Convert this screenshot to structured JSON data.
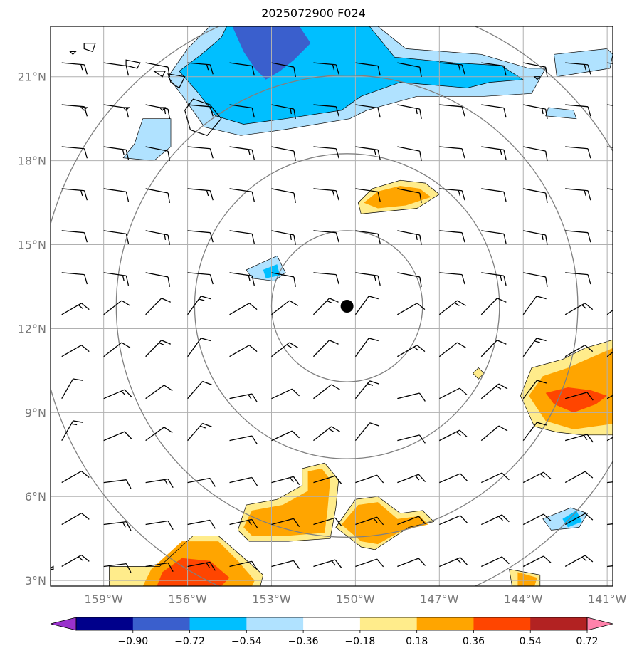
{
  "title": "2025072900 F024",
  "map": {
    "lon_range": [
      -160.9,
      -140.8
    ],
    "lat_range": [
      2.8,
      22.8
    ],
    "lat_ticks": [
      {
        "value": 21,
        "label": "21°N"
      },
      {
        "value": 18,
        "label": "18°N"
      },
      {
        "value": 15,
        "label": "15°N"
      },
      {
        "value": 12,
        "label": "12°N"
      },
      {
        "value": 9,
        "label": "9°N"
      },
      {
        "value": 6,
        "label": "6°N"
      },
      {
        "value": 3,
        "label": "3°N"
      }
    ],
    "lon_ticks": [
      {
        "value": -159,
        "label": "159°W"
      },
      {
        "value": -156,
        "label": "156°W"
      },
      {
        "value": -153,
        "label": "153°W"
      },
      {
        "value": -150,
        "label": "150°W"
      },
      {
        "value": -147,
        "label": "147°W"
      },
      {
        "value": -144,
        "label": "144°W"
      },
      {
        "value": -141,
        "label": "141°W"
      }
    ],
    "center": {
      "lon": -150.3,
      "lat": 12.8
    },
    "range_rings_deg": [
      2.7,
      5.45,
      8.25,
      11.0
    ],
    "colors": {
      "grid": "#b0b0b0",
      "ring": "#808080",
      "frame": "#000000",
      "center_marker": "#000000"
    }
  },
  "colorbar": {
    "colors": [
      "#9932cc",
      "#00008b",
      "#3a5fcd",
      "#00bfff",
      "#b0e2ff",
      "#ffffff",
      "#ffec8b",
      "#ffa500",
      "#ff4500",
      "#b22222",
      "#ff82ab"
    ],
    "ticks": [
      "−0.90",
      "−0.72",
      "−0.54",
      "−0.36",
      "−0.18",
      "0.18",
      "0.36",
      "0.54",
      "0.72",
      "0.90"
    ]
  },
  "shaded_regions": [
    {
      "level": -0.36,
      "color": "#00bfff",
      "poly": [
        [
          -154.6,
          22.8
        ],
        [
          -149.5,
          22.8
        ],
        [
          -148.6,
          21.7
        ],
        [
          -146.5,
          21.5
        ],
        [
          -144.8,
          21.4
        ],
        [
          -144.0,
          20.9
        ],
        [
          -145.2,
          20.8
        ],
        [
          -146.0,
          20.6
        ],
        [
          -148.4,
          20.8
        ],
        [
          -149.8,
          20.3
        ],
        [
          -150.5,
          19.8
        ],
        [
          -152.5,
          19.5
        ],
        [
          -154.0,
          19.3
        ],
        [
          -155.0,
          19.6
        ],
        [
          -155.6,
          20.4
        ],
        [
          -156.3,
          21.2
        ],
        [
          -155.5,
          21.8
        ],
        [
          -154.8,
          22.4
        ]
      ]
    },
    {
      "level": -0.18,
      "color": "#b0e2ff",
      "poly": [
        [
          -155.2,
          22.8
        ],
        [
          -154.6,
          22.8
        ],
        [
          -154.8,
          22.4
        ],
        [
          -155.5,
          21.8
        ],
        [
          -156.3,
          21.2
        ],
        [
          -155.6,
          20.4
        ],
        [
          -155.0,
          19.6
        ],
        [
          -154.0,
          19.3
        ],
        [
          -152.5,
          19.5
        ],
        [
          -150.5,
          19.8
        ],
        [
          -149.8,
          20.3
        ],
        [
          -148.4,
          20.8
        ],
        [
          -146.0,
          20.6
        ],
        [
          -145.2,
          20.8
        ],
        [
          -144.0,
          20.9
        ],
        [
          -144.8,
          21.4
        ],
        [
          -146.5,
          21.5
        ],
        [
          -148.6,
          21.7
        ],
        [
          -149.5,
          22.8
        ],
        [
          -149.2,
          22.8
        ],
        [
          -148.2,
          22.0
        ],
        [
          -145.5,
          21.8
        ],
        [
          -143.8,
          21.3
        ],
        [
          -143.2,
          21.3
        ],
        [
          -143.7,
          20.4
        ],
        [
          -145.4,
          20.3
        ],
        [
          -147.8,
          20.3
        ],
        [
          -149.6,
          19.8
        ],
        [
          -150.2,
          19.5
        ],
        [
          -152.6,
          19.1
        ],
        [
          -154.1,
          18.9
        ],
        [
          -155.4,
          19.2
        ],
        [
          -156.1,
          20.2
        ],
        [
          -156.7,
          21.0
        ],
        [
          -156.0,
          22.0
        ]
      ]
    },
    {
      "level": -0.54,
      "color": "#3a5fcd",
      "poly": [
        [
          -154.4,
          22.8
        ],
        [
          -152.0,
          22.8
        ],
        [
          -151.6,
          22.2
        ],
        [
          -152.2,
          21.6
        ],
        [
          -152.7,
          21.2
        ],
        [
          -153.2,
          20.9
        ],
        [
          -153.6,
          21.3
        ],
        [
          -154.0,
          21.9
        ]
      ]
    },
    {
      "level": -0.36,
      "color": "#00bfff",
      "poly": [
        [
          -157.5,
          19.2
        ],
        [
          -157.1,
          19.3
        ],
        [
          -156.8,
          18.6
        ],
        [
          -157.3,
          18.2
        ],
        [
          -157.8,
          18.4
        ]
      ]
    },
    {
      "level": -0.18,
      "color": "#b0e2ff",
      "poly": [
        [
          -157.6,
          19.5
        ],
        [
          -156.6,
          19.5
        ],
        [
          -156.6,
          18.5
        ],
        [
          -157.2,
          18.0
        ],
        [
          -158.3,
          18.1
        ],
        [
          -157.9,
          18.6
        ]
      ]
    },
    {
      "level": -0.36,
      "color": "#00bfff",
      "poly": [
        [
          -142.5,
          21.6
        ],
        [
          -141.2,
          21.7
        ],
        [
          -141.0,
          21.4
        ],
        [
          -142.4,
          21.3
        ]
      ]
    },
    {
      "level": -0.18,
      "color": "#b0e2ff",
      "poly": [
        [
          -142.9,
          21.8
        ],
        [
          -141.0,
          22.0
        ],
        [
          -140.8,
          21.8
        ],
        [
          -140.9,
          21.3
        ],
        [
          -142.8,
          21.0
        ]
      ]
    },
    {
      "level": -0.18,
      "color": "#b0e2ff",
      "poly": [
        [
          -143.1,
          19.9
        ],
        [
          -142.2,
          19.8
        ],
        [
          -142.1,
          19.5
        ],
        [
          -143.2,
          19.6
        ]
      ]
    },
    {
      "level": -0.18,
      "color": "#b0e2ff",
      "poly": [
        [
          -153.9,
          14.1
        ],
        [
          -152.8,
          14.6
        ],
        [
          -152.5,
          14.0
        ],
        [
          -152.9,
          13.7
        ],
        [
          -153.7,
          13.8
        ]
      ]
    },
    {
      "level": -0.36,
      "color": "#00bfff",
      "poly": [
        [
          -153.3,
          14.1
        ],
        [
          -152.8,
          14.3
        ],
        [
          -152.7,
          13.9
        ],
        [
          -153.2,
          13.8
        ]
      ]
    },
    {
      "level": -0.18,
      "color": "#b0e2ff",
      "poly": [
        [
          -143.3,
          5.2
        ],
        [
          -142.3,
          5.6
        ],
        [
          -141.7,
          5.4
        ],
        [
          -142.0,
          4.9
        ],
        [
          -143.0,
          4.8
        ]
      ]
    },
    {
      "level": -0.36,
      "color": "#00bfff",
      "poly": [
        [
          -142.6,
          5.2
        ],
        [
          -142.1,
          5.5
        ],
        [
          -141.9,
          5.1
        ],
        [
          -142.4,
          4.9
        ]
      ]
    },
    {
      "level": 0.18,
      "color": "#ffec8b",
      "poly": [
        [
          -149.9,
          16.5
        ],
        [
          -149.4,
          17.0
        ],
        [
          -148.4,
          17.3
        ],
        [
          -147.5,
          17.2
        ],
        [
          -147.0,
          16.8
        ],
        [
          -147.8,
          16.3
        ],
        [
          -148.8,
          16.2
        ],
        [
          -149.8,
          16.1
        ]
      ]
    },
    {
      "level": 0.36,
      "color": "#ffa500",
      "poly": [
        [
          -149.7,
          16.5
        ],
        [
          -149.2,
          16.9
        ],
        [
          -148.4,
          17.1
        ],
        [
          -147.7,
          17.0
        ],
        [
          -147.3,
          16.7
        ],
        [
          -148.2,
          16.4
        ],
        [
          -149.2,
          16.3
        ]
      ]
    },
    {
      "level": 0.18,
      "color": "#ffec8b",
      "poly": [
        [
          -144.1,
          9.6
        ],
        [
          -143.7,
          10.6
        ],
        [
          -142.6,
          10.9
        ],
        [
          -141.8,
          11.3
        ],
        [
          -140.8,
          11.6
        ],
        [
          -140.8,
          8.2
        ],
        [
          -141.9,
          8.2
        ],
        [
          -142.8,
          8.3
        ],
        [
          -143.6,
          8.5
        ]
      ]
    },
    {
      "level": 0.36,
      "color": "#ffa500",
      "poly": [
        [
          -143.8,
          9.6
        ],
        [
          -143.3,
          10.3
        ],
        [
          -142.4,
          10.6
        ],
        [
          -141.5,
          11.0
        ],
        [
          -140.8,
          11.3
        ],
        [
          -140.8,
          8.6
        ],
        [
          -142.2,
          8.4
        ],
        [
          -143.2,
          8.7
        ]
      ]
    },
    {
      "level": 0.54,
      "color": "#ff4500",
      "poly": [
        [
          -143.2,
          9.7
        ],
        [
          -142.4,
          9.9
        ],
        [
          -141.6,
          9.8
        ],
        [
          -141.0,
          9.6
        ],
        [
          -141.4,
          9.3
        ],
        [
          -142.2,
          9.0
        ],
        [
          -142.9,
          9.3
        ]
      ]
    },
    {
      "level": 0.18,
      "color": "#ffec8b",
      "poly": [
        [
          -145.8,
          10.4
        ],
        [
          -145.6,
          10.6
        ],
        [
          -145.4,
          10.4
        ],
        [
          -145.6,
          10.2
        ]
      ]
    },
    {
      "level": 0.18,
      "color": "#ffec8b",
      "poly": [
        [
          -154.2,
          4.8
        ],
        [
          -153.9,
          5.7
        ],
        [
          -152.8,
          5.9
        ],
        [
          -151.9,
          6.4
        ],
        [
          -151.9,
          7.0
        ],
        [
          -151.1,
          7.2
        ],
        [
          -150.6,
          6.6
        ],
        [
          -150.7,
          5.6
        ],
        [
          -150.9,
          4.5
        ],
        [
          -152.4,
          4.4
        ],
        [
          -153.8,
          4.4
        ]
      ]
    },
    {
      "level": 0.36,
      "color": "#ffa500",
      "poly": [
        [
          -154.0,
          4.9
        ],
        [
          -153.7,
          5.5
        ],
        [
          -152.6,
          5.7
        ],
        [
          -151.7,
          6.2
        ],
        [
          -151.7,
          6.9
        ],
        [
          -151.2,
          7.0
        ],
        [
          -150.9,
          6.6
        ],
        [
          -151.0,
          5.5
        ],
        [
          -151.1,
          4.7
        ],
        [
          -152.4,
          4.6
        ],
        [
          -153.7,
          4.6
        ]
      ]
    },
    {
      "level": 0.18,
      "color": "#ffec8b",
      "poly": [
        [
          -150.7,
          4.9
        ],
        [
          -150.0,
          5.9
        ],
        [
          -149.2,
          6.0
        ],
        [
          -148.4,
          5.4
        ],
        [
          -147.6,
          5.5
        ],
        [
          -147.2,
          5.1
        ],
        [
          -148.1,
          4.9
        ],
        [
          -149.3,
          4.1
        ],
        [
          -149.8,
          4.2
        ]
      ]
    },
    {
      "level": 0.36,
      "color": "#ffa500",
      "poly": [
        [
          -150.5,
          5.0
        ],
        [
          -149.9,
          5.7
        ],
        [
          -149.2,
          5.8
        ],
        [
          -148.5,
          5.2
        ],
        [
          -147.7,
          5.3
        ],
        [
          -147.4,
          5.0
        ],
        [
          -148.3,
          4.8
        ],
        [
          -149.2,
          4.3
        ],
        [
          -149.8,
          4.4
        ]
      ]
    },
    {
      "level": 0.18,
      "color": "#ffec8b",
      "poly": [
        [
          -158.8,
          3.5
        ],
        [
          -157.0,
          3.5
        ],
        [
          -155.8,
          4.6
        ],
        [
          -154.9,
          4.6
        ],
        [
          -154.1,
          3.9
        ],
        [
          -153.3,
          3.2
        ],
        [
          -153.4,
          2.8
        ],
        [
          -158.8,
          2.8
        ]
      ]
    },
    {
      "level": 0.36,
      "color": "#ffa500",
      "poly": [
        [
          -157.3,
          3.4
        ],
        [
          -156.2,
          4.4
        ],
        [
          -154.9,
          4.4
        ],
        [
          -154.2,
          3.7
        ],
        [
          -153.6,
          3.0
        ],
        [
          -153.7,
          2.8
        ],
        [
          -157.6,
          2.8
        ]
      ]
    },
    {
      "level": 0.54,
      "color": "#ff4500",
      "poly": [
        [
          -156.9,
          3.3
        ],
        [
          -156.2,
          3.8
        ],
        [
          -155.2,
          3.7
        ],
        [
          -154.5,
          3.1
        ],
        [
          -154.8,
          2.8
        ],
        [
          -157.1,
          2.8
        ]
      ]
    },
    {
      "level": 0.18,
      "color": "#ffec8b",
      "poly": [
        [
          -144.5,
          3.4
        ],
        [
          -143.4,
          3.2
        ],
        [
          -143.4,
          2.8
        ],
        [
          -144.4,
          2.8
        ]
      ]
    },
    {
      "level": 0.36,
      "color": "#ffa500",
      "poly": [
        [
          -144.2,
          3.3
        ],
        [
          -143.5,
          3.1
        ],
        [
          -143.6,
          2.8
        ],
        [
          -144.2,
          2.8
        ]
      ]
    }
  ],
  "coastlines": [
    {
      "poly": [
        [
          -155.8,
          20.2
        ],
        [
          -155.2,
          20.0
        ],
        [
          -154.8,
          19.5
        ],
        [
          -155.3,
          18.9
        ],
        [
          -155.9,
          19.1
        ],
        [
          -156.1,
          19.8
        ]
      ]
    },
    {
      "poly": [
        [
          -156.7,
          21.1
        ],
        [
          -156.1,
          21.0
        ],
        [
          -156.3,
          20.6
        ],
        [
          -156.6,
          20.8
        ]
      ]
    },
    {
      "poly": [
        [
          -157.2,
          21.2
        ],
        [
          -156.8,
          21.2
        ],
        [
          -156.9,
          21.0
        ]
      ]
    },
    {
      "poly": [
        [
          -158.2,
          21.6
        ],
        [
          -157.7,
          21.5
        ],
        [
          -157.8,
          21.3
        ],
        [
          -158.2,
          21.4
        ]
      ]
    },
    {
      "poly": [
        [
          -159.7,
          22.2
        ],
        [
          -159.3,
          22.2
        ],
        [
          -159.4,
          21.9
        ],
        [
          -159.7,
          22.0
        ]
      ]
    },
    {
      "poly": [
        [
          -160.2,
          21.9
        ],
        [
          -160.0,
          21.9
        ],
        [
          -160.1,
          21.8
        ]
      ]
    },
    {
      "poly": [
        [
          -159.8,
          19.9
        ],
        [
          -159.6,
          19.9
        ],
        [
          -159.7,
          19.8
        ]
      ]
    },
    {
      "poly": [
        [
          -158.3,
          19.9
        ],
        [
          -158.1,
          19.9
        ],
        [
          -158.2,
          19.8
        ]
      ]
    },
    {
      "poly": [
        [
          -157.0,
          19.9
        ],
        [
          -156.8,
          19.9
        ],
        [
          -156.9,
          19.8
        ]
      ]
    },
    {
      "poly": [
        [
          -143.6,
          21.0
        ],
        [
          -143.4,
          21.0
        ],
        [
          -143.5,
          20.9
        ]
      ]
    },
    {
      "poly": [
        [
          -161.0,
          3.4
        ],
        [
          -160.8,
          3.5
        ],
        [
          -160.8,
          3.4
        ]
      ]
    }
  ],
  "wind_barbs": {
    "lons": [
      -160.5,
      -159.0,
      -157.5,
      -156.0,
      -154.5,
      -153.0,
      -151.5,
      -150.0,
      -148.5,
      -147.0,
      -145.5,
      -144.0,
      -142.5,
      -141.0
    ],
    "lats": [
      21.5,
      20.0,
      18.5,
      17.0,
      15.5,
      14.0,
      12.5,
      11.0,
      9.5,
      8.0,
      6.5,
      5.0,
      3.5
    ]
  }
}
